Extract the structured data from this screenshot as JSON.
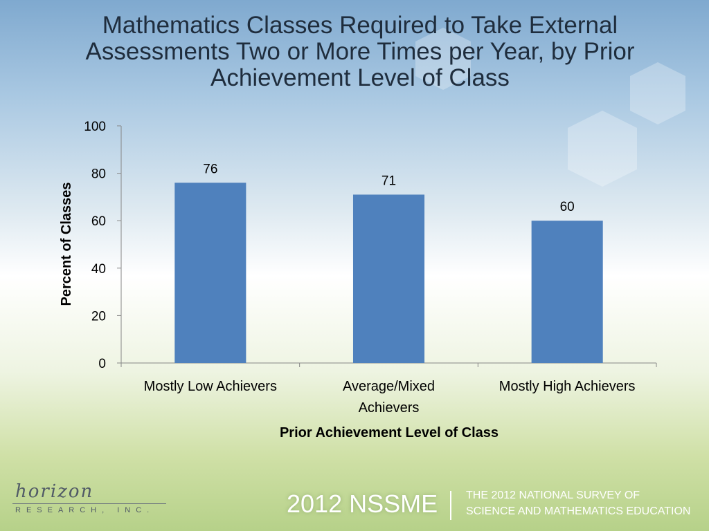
{
  "title_lines": [
    "Mathematics Classes Required to Take External",
    "Assessments Two or More Times per Year, by Prior",
    "Achievement Level of Class"
  ],
  "chart_data": {
    "type": "bar",
    "categories": [
      [
        "Mostly Low Achievers"
      ],
      [
        "Average/Mixed",
        "Achievers"
      ],
      [
        "Mostly High Achievers"
      ]
    ],
    "values": [
      76,
      71,
      60
    ],
    "data_labels": [
      "76",
      "71",
      "60"
    ],
    "xlabel": "Prior Achievement Level of Class",
    "ylabel": "Percent of Classes",
    "ylim": [
      0,
      100
    ],
    "yticks": [
      0,
      20,
      40,
      60,
      80,
      100
    ],
    "grid": false,
    "bar_color": "#4f81bd"
  },
  "footer": {
    "logo_word": "horizon",
    "logo_sub": "RESEARCH, INC.",
    "brand": "2012 NSSME",
    "survey_lines": [
      "THE 2012 NATIONAL SURVEY OF",
      "SCIENCE AND MATHEMATICS EDUCATION"
    ]
  }
}
